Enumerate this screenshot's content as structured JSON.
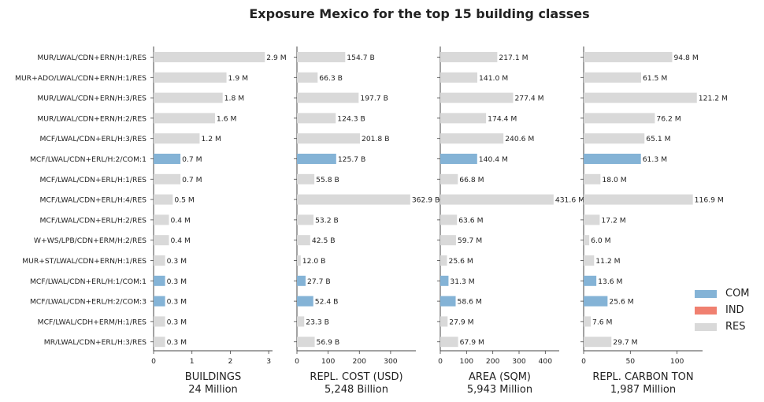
{
  "chart_data": {
    "type": "bar",
    "orientation": "horizontal",
    "title": "Exposure Mexico for the top 15 building classes",
    "grid": false,
    "legend_position": "right",
    "colors": {
      "COM": "#84b3d6",
      "IND": "#f08070",
      "RES": "#d9d9d9"
    },
    "legend": [
      "COM",
      "IND",
      "RES"
    ],
    "categories": [
      "MUR/LWAL/CDN+ERN/H:1/RES",
      "MUR+ADO/LWAL/CDN+ERN/H:1/RES",
      "MUR/LWAL/CDN+ERN/H:3/RES",
      "MUR/LWAL/CDN+ERN/H:2/RES",
      "MCF/LWAL/CDN+ERL/H:3/RES",
      "MCF/LWAL/CDN+ERL/H:2/COM:1",
      "MCF/LWAL/CDN+ERL/H:1/RES",
      "MCF/LWAL/CDN+ERL/H:4/RES",
      "MCF/LWAL/CDN+ERL/H:2/RES",
      "W+WS/LPB/CDN+ERM/H:2/RES",
      "MUR+ST/LWAL/CDN+ERN/H:1/RES",
      "MCF/LWAL/CDN+ERL/H:1/COM:1",
      "MCF/LWAL/CDN+ERL/H:2/COM:3",
      "MCF/LWAL/CDH+ERM/H:1/RES",
      "MR/LWAL/CDN+ERL/H:3/RES"
    ],
    "occupancy": [
      "RES",
      "RES",
      "RES",
      "RES",
      "RES",
      "COM",
      "RES",
      "RES",
      "RES",
      "RES",
      "RES",
      "COM",
      "COM",
      "RES",
      "RES"
    ],
    "panels": [
      {
        "xlabel": "BUILDINGS",
        "total": "24 Million",
        "xlim": [
          0,
          3.1
        ],
        "xticks": [
          "0",
          "1",
          "2",
          "3"
        ],
        "values": [
          2.9,
          1.9,
          1.8,
          1.6,
          1.2,
          0.7,
          0.7,
          0.5,
          0.4,
          0.4,
          0.3,
          0.3,
          0.3,
          0.3,
          0.3
        ],
        "labels": [
          "2.9 M",
          "1.9 M",
          "1.8 M",
          "1.6 M",
          "1.2 M",
          "0.7 M",
          "0.7 M",
          "0.5 M",
          "0.4 M",
          "0.4 M",
          "0.3 M",
          "0.3 M",
          "0.3 M",
          "0.3 M",
          "0.3 M"
        ]
      },
      {
        "xlabel": "REPL. COST (USD)",
        "total": "5,248 Billion",
        "xlim": [
          0,
          381
        ],
        "xticks": [
          "0",
          "100",
          "200",
          "300"
        ],
        "values": [
          154.7,
          66.3,
          197.7,
          124.3,
          201.8,
          125.7,
          55.8,
          362.9,
          53.2,
          42.5,
          12.0,
          27.7,
          52.4,
          23.3,
          56.9
        ],
        "labels": [
          "154.7 B",
          "66.3 B",
          "197.7 B",
          "124.3 B",
          "201.8 B",
          "125.7 B",
          "55.8 B",
          "362.9 B",
          "53.2 B",
          "42.5 B",
          "12.0 B",
          "27.7 B",
          "52.4 B",
          "23.3 B",
          "56.9 B"
        ]
      },
      {
        "xlabel": "AREA (SQM)",
        "total": "5,943 Million",
        "xlim": [
          0,
          453
        ],
        "xticks": [
          "0",
          "100",
          "200",
          "300",
          "400"
        ],
        "values": [
          217.1,
          141.0,
          277.4,
          174.4,
          240.6,
          140.4,
          66.8,
          431.6,
          63.6,
          59.7,
          25.6,
          31.3,
          58.6,
          27.9,
          67.9
        ],
        "labels": [
          "217.1 M",
          "141.0 M",
          "277.4 M",
          "174.4 M",
          "240.6 M",
          "140.4 M",
          "66.8 M",
          "431.6 M",
          "63.6 M",
          "59.7 M",
          "25.6 M",
          "31.3 M",
          "58.6 M",
          "27.9 M",
          "67.9 M"
        ]
      },
      {
        "xlabel": "REPL. CARBON TON",
        "total": "1,987 Million",
        "xlim": [
          0,
          127.3
        ],
        "xticks": [
          "0",
          "50",
          "100"
        ],
        "values": [
          94.8,
          61.5,
          121.2,
          76.2,
          65.1,
          61.3,
          18.0,
          116.9,
          17.2,
          6.0,
          11.2,
          13.6,
          25.6,
          7.6,
          29.7
        ],
        "labels": [
          "94.8 M",
          "61.5 M",
          "121.2 M",
          "76.2 M",
          "65.1 M",
          "61.3 M",
          "18.0 M",
          "116.9 M",
          "17.2 M",
          "6.0 M",
          "11.2 M",
          "13.6 M",
          "25.6 M",
          "7.6 M",
          "29.7 M"
        ]
      }
    ]
  }
}
